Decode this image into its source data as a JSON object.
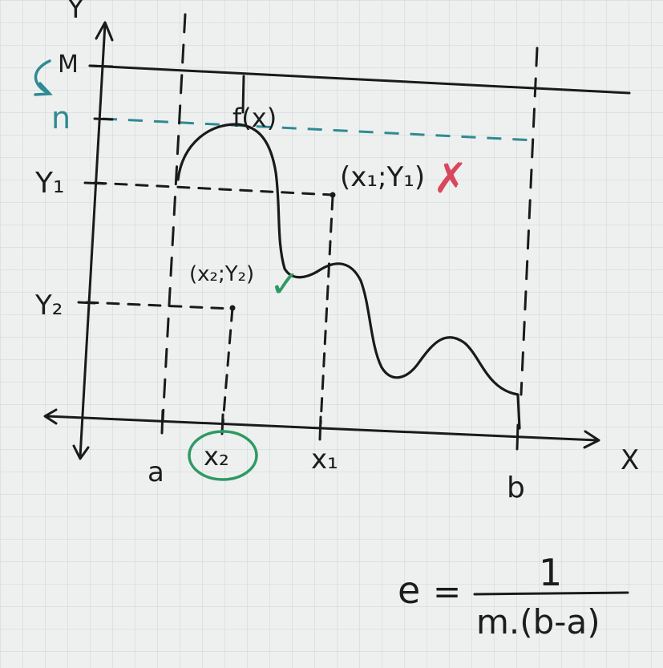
{
  "axes": {
    "y_label": "Y",
    "x_label": "X"
  },
  "y_marks": {
    "M": "M",
    "n": "n",
    "y1": "Y₁",
    "y2": "Y₂"
  },
  "x_marks": {
    "a": "a",
    "x2": "x₂",
    "x1": "x₁",
    "b": "b"
  },
  "curve_label": "f(x)",
  "points": {
    "p1": "(x₁;Y₁)",
    "p2": "(x₂;Y₂)"
  },
  "marks": {
    "rejected": "✗",
    "accepted": "✓"
  },
  "formula": {
    "lhs": "e",
    "eq": "=",
    "numerator": "1",
    "denominator": "m.(b-a)"
  },
  "colors": {
    "ink": "#1a1a1a",
    "teal": "#2f8a93",
    "red": "#d9475e",
    "green": "#2e9a62",
    "paper": "#eef0ef",
    "grid": "#c9d3d6"
  }
}
